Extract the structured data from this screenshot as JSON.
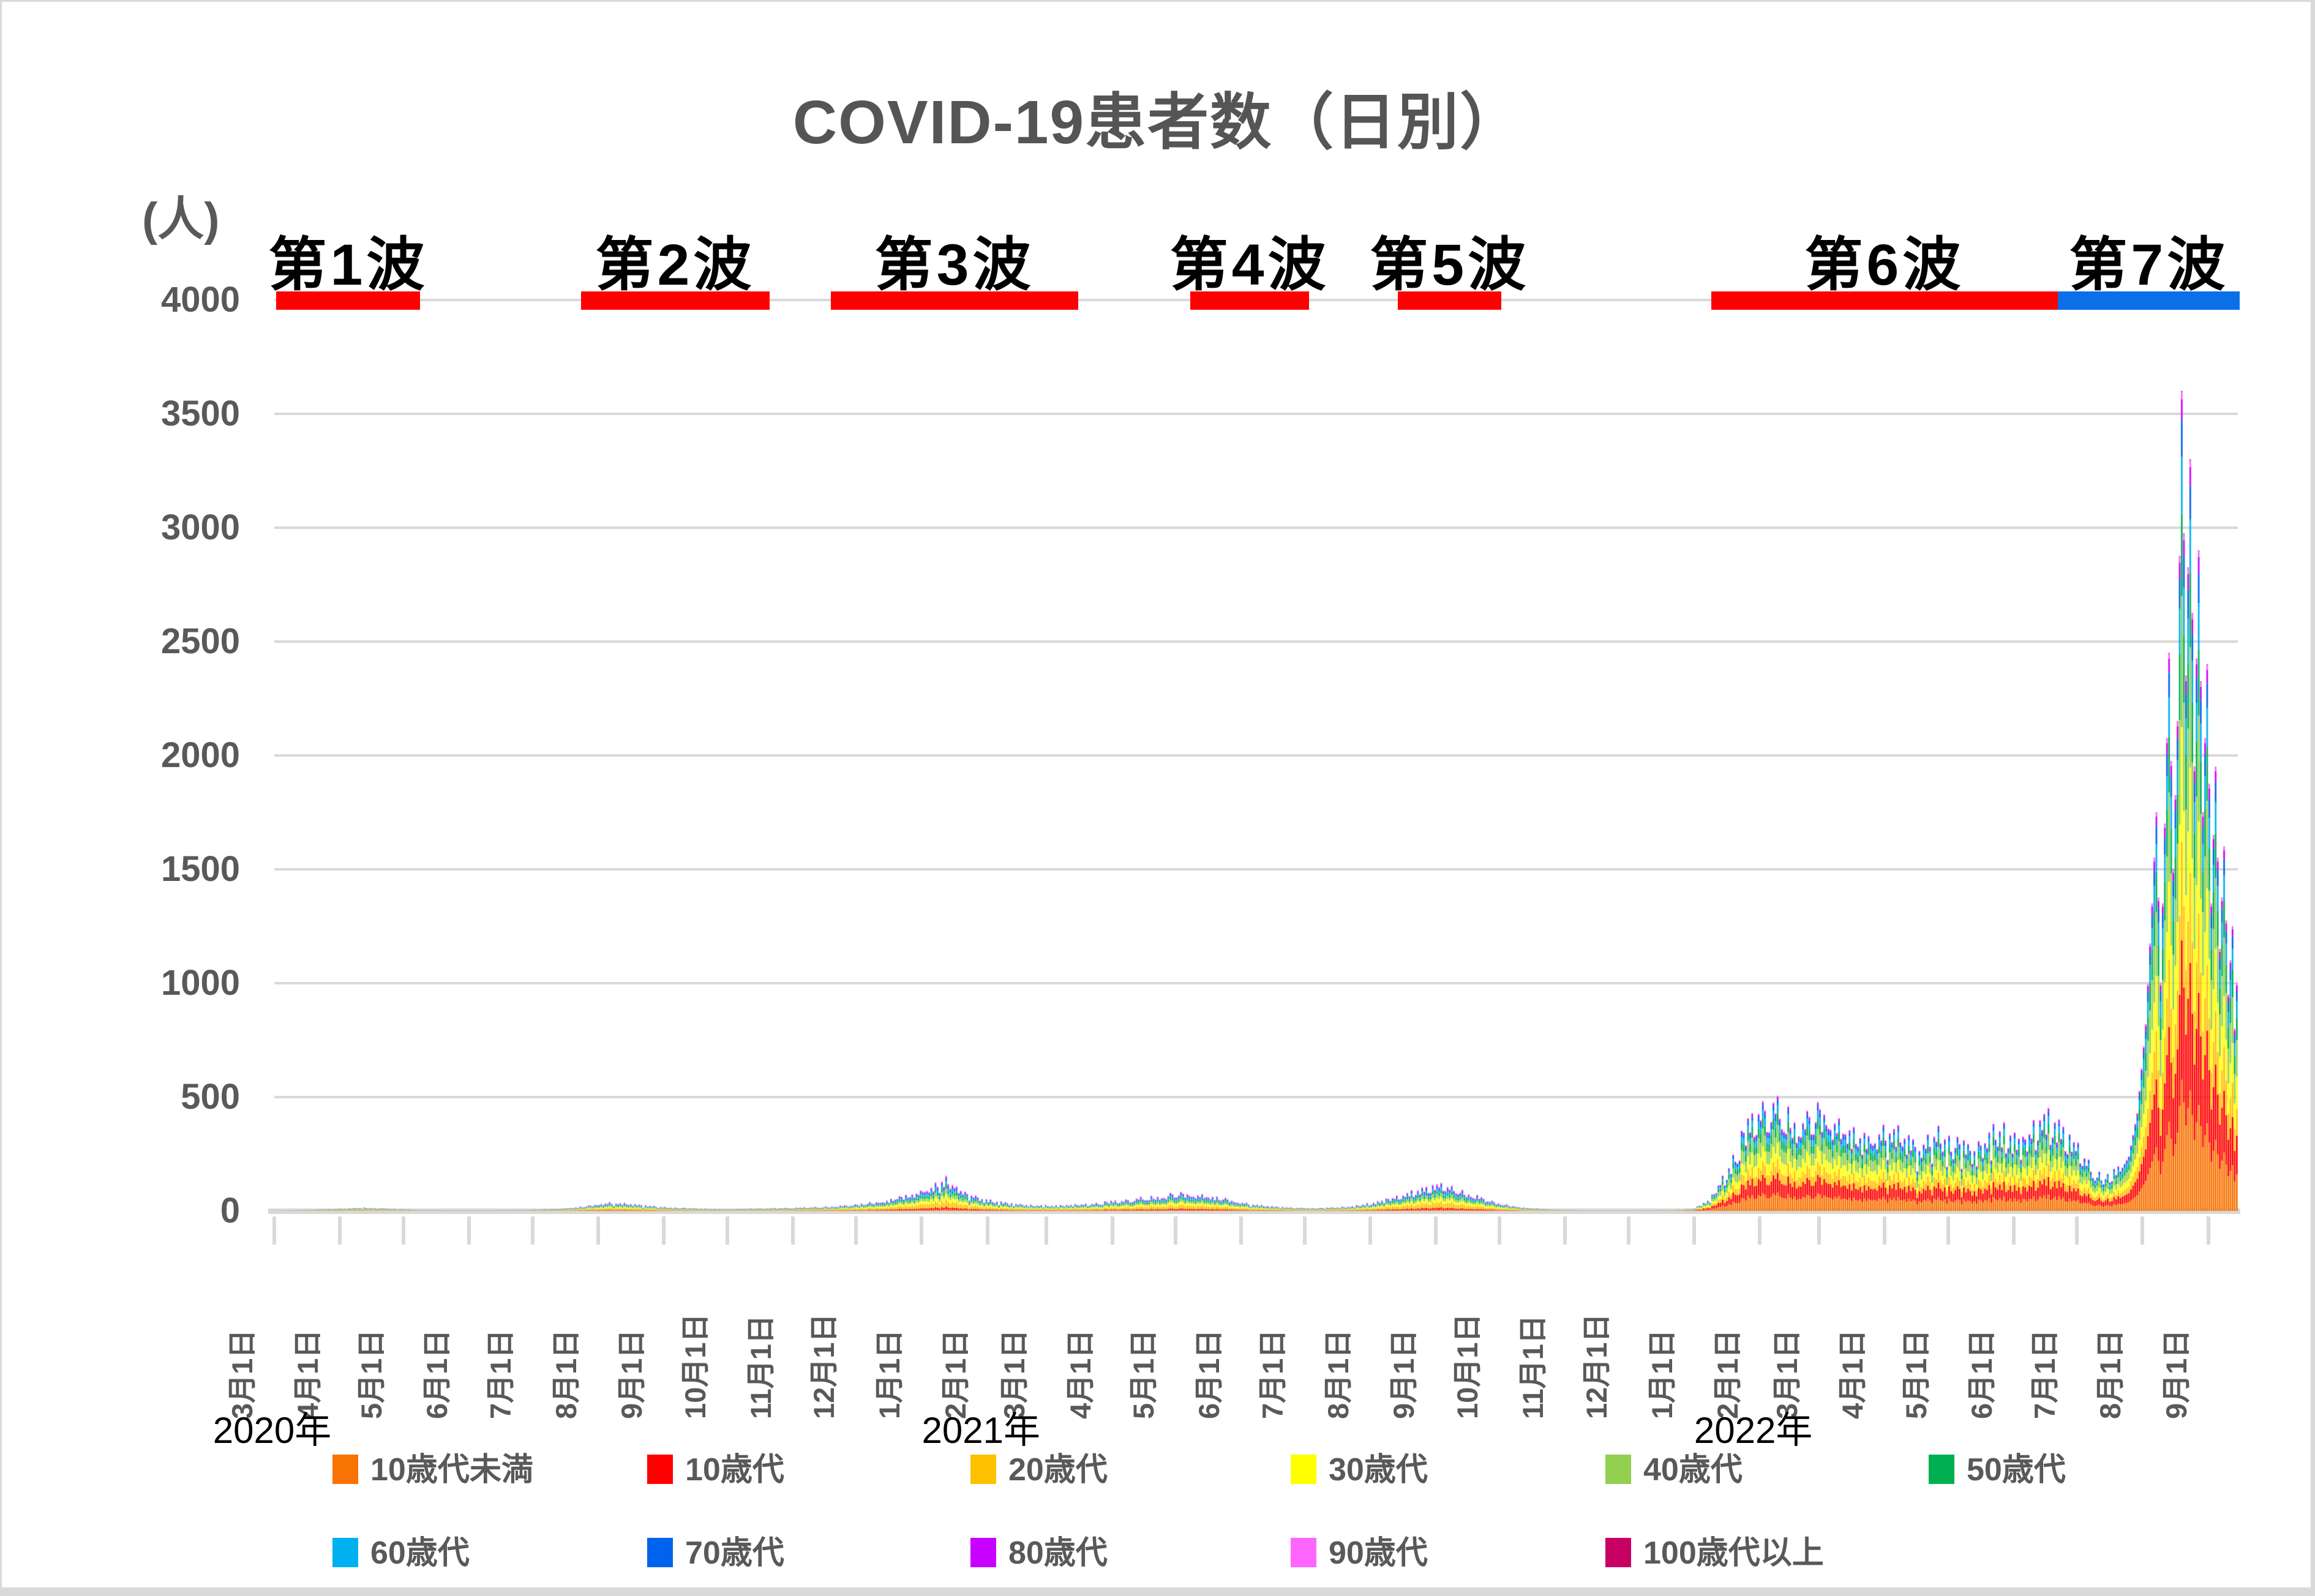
{
  "title": "COVID-19患者数（日別）",
  "y_axis": {
    "unit_label": "(人)",
    "ticks": [
      4000,
      3500,
      3000,
      2500,
      2000,
      1500,
      1000,
      500,
      0
    ],
    "max": 4000
  },
  "x_axis": {
    "months": [
      {
        "label": "3月1日",
        "day": 0
      },
      {
        "label": "4月1日",
        "day": 31
      },
      {
        "label": "5月1日",
        "day": 61
      },
      {
        "label": "6月1日",
        "day": 92
      },
      {
        "label": "7月1日",
        "day": 122
      },
      {
        "label": "8月1日",
        "day": 153
      },
      {
        "label": "9月1日",
        "day": 184
      },
      {
        "label": "10月1日",
        "day": 214
      },
      {
        "label": "11月1日",
        "day": 245
      },
      {
        "label": "12月1日",
        "day": 275
      },
      {
        "label": "1月1日",
        "day": 306
      },
      {
        "label": "2月1日",
        "day": 337
      },
      {
        "label": "3月1日",
        "day": 365
      },
      {
        "label": "4月1日",
        "day": 396
      },
      {
        "label": "5月1日",
        "day": 426
      },
      {
        "label": "6月1日",
        "day": 457
      },
      {
        "label": "7月1日",
        "day": 487
      },
      {
        "label": "8月1日",
        "day": 518
      },
      {
        "label": "9月1日",
        "day": 549
      },
      {
        "label": "10月1日",
        "day": 579
      },
      {
        "label": "11月1日",
        "day": 610
      },
      {
        "label": "12月1日",
        "day": 640
      },
      {
        "label": "1月1日",
        "day": 671
      },
      {
        "label": "2月1日",
        "day": 702
      },
      {
        "label": "3月1日",
        "day": 730
      },
      {
        "label": "4月1日",
        "day": 761
      },
      {
        "label": "5月1日",
        "day": 791
      },
      {
        "label": "6月1日",
        "day": 822
      },
      {
        "label": "7月1日",
        "day": 852
      },
      {
        "label": "8月1日",
        "day": 883
      },
      {
        "label": "9月1日",
        "day": 914
      }
    ],
    "year_labels": [
      {
        "label": "2020年",
        "day": -29
      },
      {
        "label": "2021年",
        "day": 306
      },
      {
        "label": "2022年",
        "day": 671
      }
    ]
  },
  "waves": [
    {
      "label": "第1波",
      "start_day": 1,
      "end_day": 69,
      "color": "#FF0000"
    },
    {
      "label": "第2波",
      "start_day": 145,
      "end_day": 234,
      "color": "#FF0000"
    },
    {
      "label": "第3波",
      "start_day": 263,
      "end_day": 380,
      "color": "#FF0000"
    },
    {
      "label": "第4波",
      "start_day": 433,
      "end_day": 489,
      "color": "#FF0000"
    },
    {
      "label": "第5波",
      "start_day": 531,
      "end_day": 580,
      "color": "#FF0000"
    },
    {
      "label": "第6波",
      "start_day": 679,
      "end_day": 843,
      "color": "#FF0000"
    },
    {
      "label": "第7波",
      "start_day": 843,
      "end_day": 929,
      "color": "#0B70E8"
    }
  ],
  "legend": {
    "rows": [
      [
        {
          "label": "10歳代未満",
          "color": "#F87304"
        },
        {
          "label": "10歳代",
          "color": "#FF0000"
        },
        {
          "label": "20歳代",
          "color": "#FFC000"
        },
        {
          "label": "30歳代",
          "color": "#FFFF00"
        },
        {
          "label": "40歳代",
          "color": "#92D050"
        },
        {
          "label": "50歳代",
          "color": "#00B050"
        }
      ],
      [
        {
          "label": "60歳代",
          "color": "#00B0F0"
        },
        {
          "label": "70歳代",
          "color": "#0063F0"
        },
        {
          "label": "80歳代",
          "color": "#C800FF"
        },
        {
          "label": "90歳代",
          "color": "#FF66FF"
        },
        {
          "label": "100歳代以上",
          "color": "#C80064"
        }
      ]
    ]
  },
  "colors": {
    "grid": "#D9D9D9",
    "axis_text": "#595959",
    "title_text": "#555555",
    "wave_text": "#000000"
  },
  "chart_data": {
    "type": "bar",
    "subtype": "stacked-daily",
    "title": "COVID-19患者数（日別）",
    "ylabel": "(人)",
    "ylim": [
      0,
      4000
    ],
    "grid": true,
    "x_unit": "days since 2020-03-01",
    "total_days": 928,
    "series_order_note": "stacked bottom to top in legend order",
    "series": [
      {
        "name": "10歳代未満",
        "color": "#F87304"
      },
      {
        "name": "10歳代",
        "color": "#FF0000"
      },
      {
        "name": "20歳代",
        "color": "#FFC000"
      },
      {
        "name": "30歳代",
        "color": "#FFFF00"
      },
      {
        "name": "40歳代",
        "color": "#92D050"
      },
      {
        "name": "50歳代",
        "color": "#00B050"
      },
      {
        "name": "60歳代",
        "color": "#00B0F0"
      },
      {
        "name": "70歳代",
        "color": "#0063F0"
      },
      {
        "name": "80歳代",
        "color": "#C800FF"
      },
      {
        "name": "90歳代",
        "color": "#FF66FF"
      },
      {
        "name": "100歳代以上",
        "color": "#C80064"
      }
    ],
    "total_envelope": [
      [
        0,
        1
      ],
      [
        12,
        3
      ],
      [
        30,
        8
      ],
      [
        42,
        13
      ],
      [
        52,
        9
      ],
      [
        68,
        3
      ],
      [
        95,
        2
      ],
      [
        120,
        4
      ],
      [
        135,
        9
      ],
      [
        148,
        20
      ],
      [
        158,
        34
      ],
      [
        168,
        28
      ],
      [
        182,
        16
      ],
      [
        200,
        9
      ],
      [
        214,
        6
      ],
      [
        232,
        10
      ],
      [
        252,
        14
      ],
      [
        270,
        22
      ],
      [
        284,
        36
      ],
      [
        298,
        60
      ],
      [
        310,
        95
      ],
      [
        317,
        135
      ],
      [
        325,
        75
      ],
      [
        338,
        42
      ],
      [
        352,
        26
      ],
      [
        368,
        21
      ],
      [
        384,
        28
      ],
      [
        400,
        42
      ],
      [
        415,
        58
      ],
      [
        428,
        72
      ],
      [
        438,
        68
      ],
      [
        452,
        42
      ],
      [
        466,
        22
      ],
      [
        480,
        13
      ],
      [
        495,
        11
      ],
      [
        510,
        20
      ],
      [
        524,
        44
      ],
      [
        538,
        78
      ],
      [
        549,
        105
      ],
      [
        558,
        92
      ],
      [
        570,
        52
      ],
      [
        582,
        24
      ],
      [
        594,
        10
      ],
      [
        606,
        4
      ],
      [
        622,
        2
      ],
      [
        645,
        2
      ],
      [
        660,
        3
      ],
      [
        670,
        8
      ],
      [
        678,
        45
      ],
      [
        686,
        160
      ],
      [
        694,
        310
      ],
      [
        702,
        420
      ],
      [
        708,
        430
      ],
      [
        714,
        400
      ],
      [
        722,
        350
      ],
      [
        730,
        420
      ],
      [
        738,
        380
      ],
      [
        746,
        320
      ],
      [
        754,
        300
      ],
      [
        762,
        340
      ],
      [
        770,
        295
      ],
      [
        778,
        255
      ],
      [
        786,
        320
      ],
      [
        794,
        275
      ],
      [
        802,
        245
      ],
      [
        810,
        315
      ],
      [
        818,
        340
      ],
      [
        826,
        275
      ],
      [
        834,
        390
      ],
      [
        841,
        360
      ],
      [
        848,
        295
      ],
      [
        854,
        225
      ],
      [
        860,
        160
      ],
      [
        866,
        135
      ],
      [
        872,
        175
      ],
      [
        876,
        240
      ],
      [
        880,
        430
      ],
      [
        884,
        820
      ],
      [
        887,
        1350
      ],
      [
        889,
        1750
      ],
      [
        891,
        1000
      ],
      [
        893,
        1700
      ],
      [
        895,
        2450
      ],
      [
        897,
        1500
      ],
      [
        899,
        2150
      ],
      [
        901,
        3600
      ],
      [
        903,
        2350
      ],
      [
        905,
        3300
      ],
      [
        907,
        1950
      ],
      [
        909,
        2900
      ],
      [
        911,
        1750
      ],
      [
        913,
        2400
      ],
      [
        915,
        1350
      ],
      [
        917,
        1950
      ],
      [
        919,
        1150
      ],
      [
        921,
        1600
      ],
      [
        923,
        950
      ],
      [
        925,
        1250
      ],
      [
        926,
        800
      ],
      [
        927,
        1000
      ],
      [
        928,
        500
      ]
    ],
    "age_share_early": [
      0.05,
      0.08,
      0.21,
      0.15,
      0.14,
      0.12,
      0.09,
      0.07,
      0.05,
      0.03,
      0.01
    ],
    "age_share_late": [
      0.16,
      0.17,
      0.12,
      0.14,
      0.16,
      0.1,
      0.07,
      0.045,
      0.025,
      0.009,
      0.001
    ],
    "share_blend_days": [
      600,
      690
    ],
    "peak_total": 3600,
    "peak_day": 901
  }
}
